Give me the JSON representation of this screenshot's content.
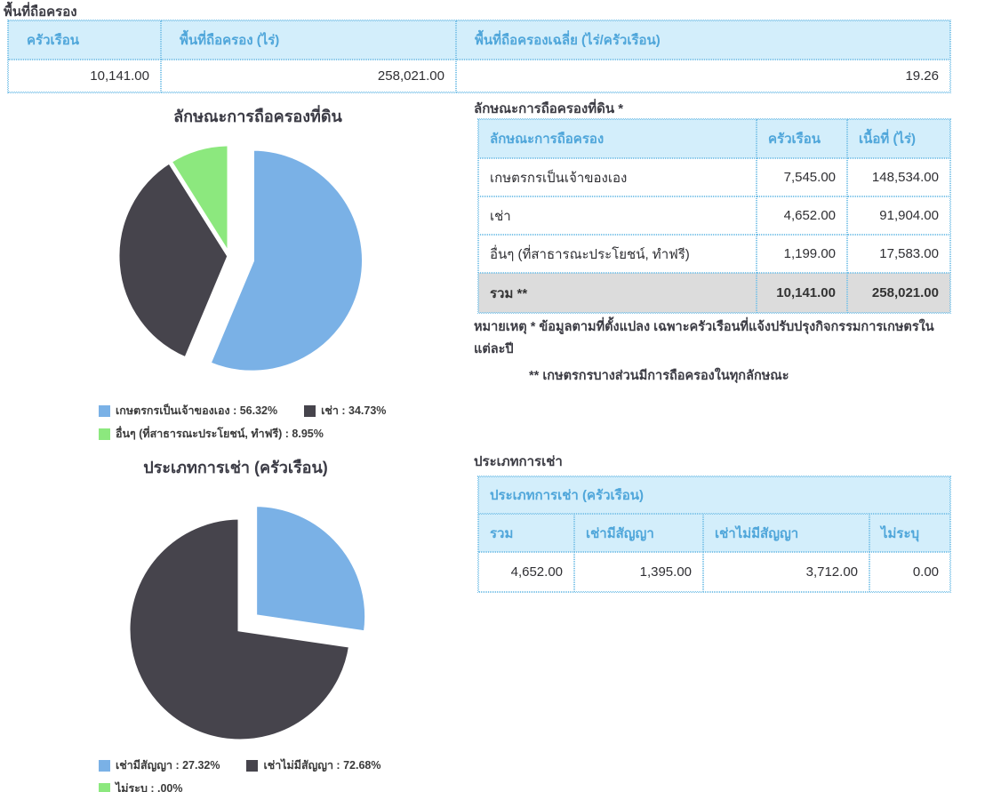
{
  "area": {
    "title": "พื้นที่ถือครอง",
    "headers": [
      "ครัวเรือน",
      "พื้นที่ถือครอง (ไร่)",
      "พื้นที่ถือครองเฉลี่ย (ไร่/ครัวเรือน)"
    ],
    "row": [
      "10,141.00",
      "258,021.00",
      "19.26"
    ]
  },
  "holding": {
    "table_title": "ลักษณะการถือครองที่ดิน *",
    "headers": [
      "ลักษณะการถือครอง",
      "ครัวเรือน",
      "เนื้อที่ (ไร่)"
    ],
    "rows": [
      [
        "เกษตรกรเป็นเจ้าของเอง",
        "7,545.00",
        "148,534.00"
      ],
      [
        "เช่า",
        "4,652.00",
        "91,904.00"
      ],
      [
        "อื่นๆ (ที่สาธารณะประโยชน์, ทำฟรี)",
        "1,199.00",
        "17,583.00"
      ]
    ],
    "total": [
      "รวม **",
      "10,141.00",
      "258,021.00"
    ],
    "note1": "หมายเหตุ * ข้อมูลตามที่ตั้งแปลง เฉพาะครัวเรือนที่แจ้งปรับปรุงกิจกรรมการเกษตรในแต่ละปี",
    "note2": "** เกษตรกรบางส่วนมีการถือครองในทุกลักษณะ"
  },
  "rental": {
    "table_title": "ประเภทการเช่า",
    "span_header": "ประเภทการเช่า (ครัวเรือน)",
    "headers": [
      "รวม",
      "เช่ามีสัญญา",
      "เช่าไม่มีสัญญา",
      "ไม่ระบุ"
    ],
    "row": [
      "4,652.00",
      "1,395.00",
      "3,712.00",
      "0.00"
    ]
  },
  "chart_data": [
    {
      "type": "pie",
      "title": "ลักษณะการถือครองที่ดิน",
      "labels": [
        "เกษตรกรเป็นเจ้าของเอง",
        "เช่า",
        "อื่นๆ (ที่สาธารณะประโยชน์, ทำฟรี)"
      ],
      "values": [
        56.32,
        34.73,
        8.95
      ],
      "colors": [
        "#7ab1e6",
        "#46444c",
        "#8ce87e"
      ],
      "exploded_index": 0,
      "start_angle_deg": 0,
      "legend_position": "bottom",
      "legend": [
        "เกษตรกรเป็นเจ้าของเอง : 56.32%",
        "เช่า : 34.73%",
        "อื่นๆ (ที่สาธารณะประโยชน์, ทำฟรี) : 8.95%"
      ]
    },
    {
      "type": "pie",
      "title": "ประเภทการเช่า (ครัวเรือน)",
      "labels": [
        "เช่ามีสัญญา",
        "เช่าไม่มีสัญญา",
        "ไม่ระบุ"
      ],
      "values": [
        27.32,
        72.68,
        0.0
      ],
      "colors": [
        "#7ab1e6",
        "#46444c",
        "#8ce87e"
      ],
      "exploded_index": 0,
      "start_angle_deg": 0,
      "legend_position": "bottom",
      "legend": [
        "เช่ามีสัญญา : 27.32%",
        "เช่าไม่มีสัญญา : 72.68%",
        "ไม่ระบุ : .00%"
      ]
    }
  ],
  "style_colors": {
    "header_bg": "#d3eefb",
    "header_text": "#4fa6da",
    "table_border": "#7cc3e8",
    "total_row_bg": "#dcdcdc"
  }
}
